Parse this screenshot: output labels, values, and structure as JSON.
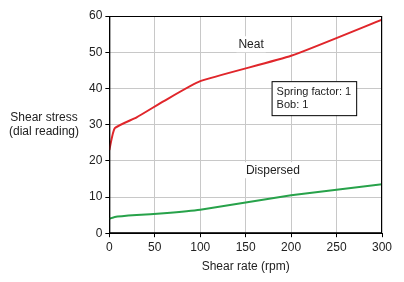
{
  "chart_data": {
    "type": "line",
    "x_label": "Shear rate (rpm)",
    "y_label": "Shear stress (dial reading)",
    "x": [
      0,
      6,
      30,
      60,
      100,
      200,
      300
    ],
    "series": [
      {
        "name": "Neat",
        "color": "#e0262b",
        "values": [
          23,
          29,
          32,
          36.5,
          42,
          49,
          59
        ]
      },
      {
        "name": "Dispersed",
        "color": "#27a24a",
        "values": [
          4,
          4.5,
          5,
          5.5,
          6.5,
          10.5,
          13.5
        ]
      }
    ],
    "annotations": [
      "Spring factor: 1",
      "Bob: 1"
    ],
    "xlim": [
      0,
      300
    ],
    "xticks": [
      0,
      50,
      100,
      150,
      200,
      250,
      300
    ],
    "ylim": [
      0,
      60
    ],
    "yticks": [
      0,
      10,
      20,
      30,
      40,
      50,
      60
    ],
    "grid": true
  }
}
